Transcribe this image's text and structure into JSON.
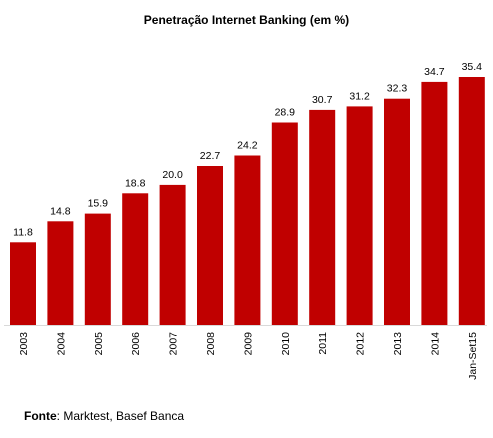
{
  "chart_data": {
    "type": "bar",
    "title": "Penetração Internet Banking (em %)",
    "xlabel": "",
    "ylabel": "",
    "categories": [
      "2003",
      "2004",
      "2005",
      "2006",
      "2007",
      "2008",
      "2009",
      "2010",
      "2011",
      "2012",
      "2013",
      "2014",
      "Jan-Set15"
    ],
    "values": [
      11.8,
      14.8,
      15.9,
      18.8,
      20.0,
      22.7,
      24.2,
      28.9,
      30.7,
      31.2,
      32.3,
      34.7,
      35.4
    ],
    "value_labels": [
      "11.8",
      "14.8",
      "15.9",
      "18.8",
      "20.0",
      "22.7",
      "24.2",
      "28.9",
      "30.7",
      "31.2",
      "32.3",
      "34.7",
      "35.4"
    ],
    "ylim": [
      0,
      35.4
    ],
    "grid": false,
    "legend": "none",
    "colors": {
      "bar": "#c00000",
      "axis": "#d9d9d9",
      "text": "#000000"
    }
  },
  "source": {
    "label": "Fonte",
    "text": ": Marktest, Basef Banca"
  }
}
